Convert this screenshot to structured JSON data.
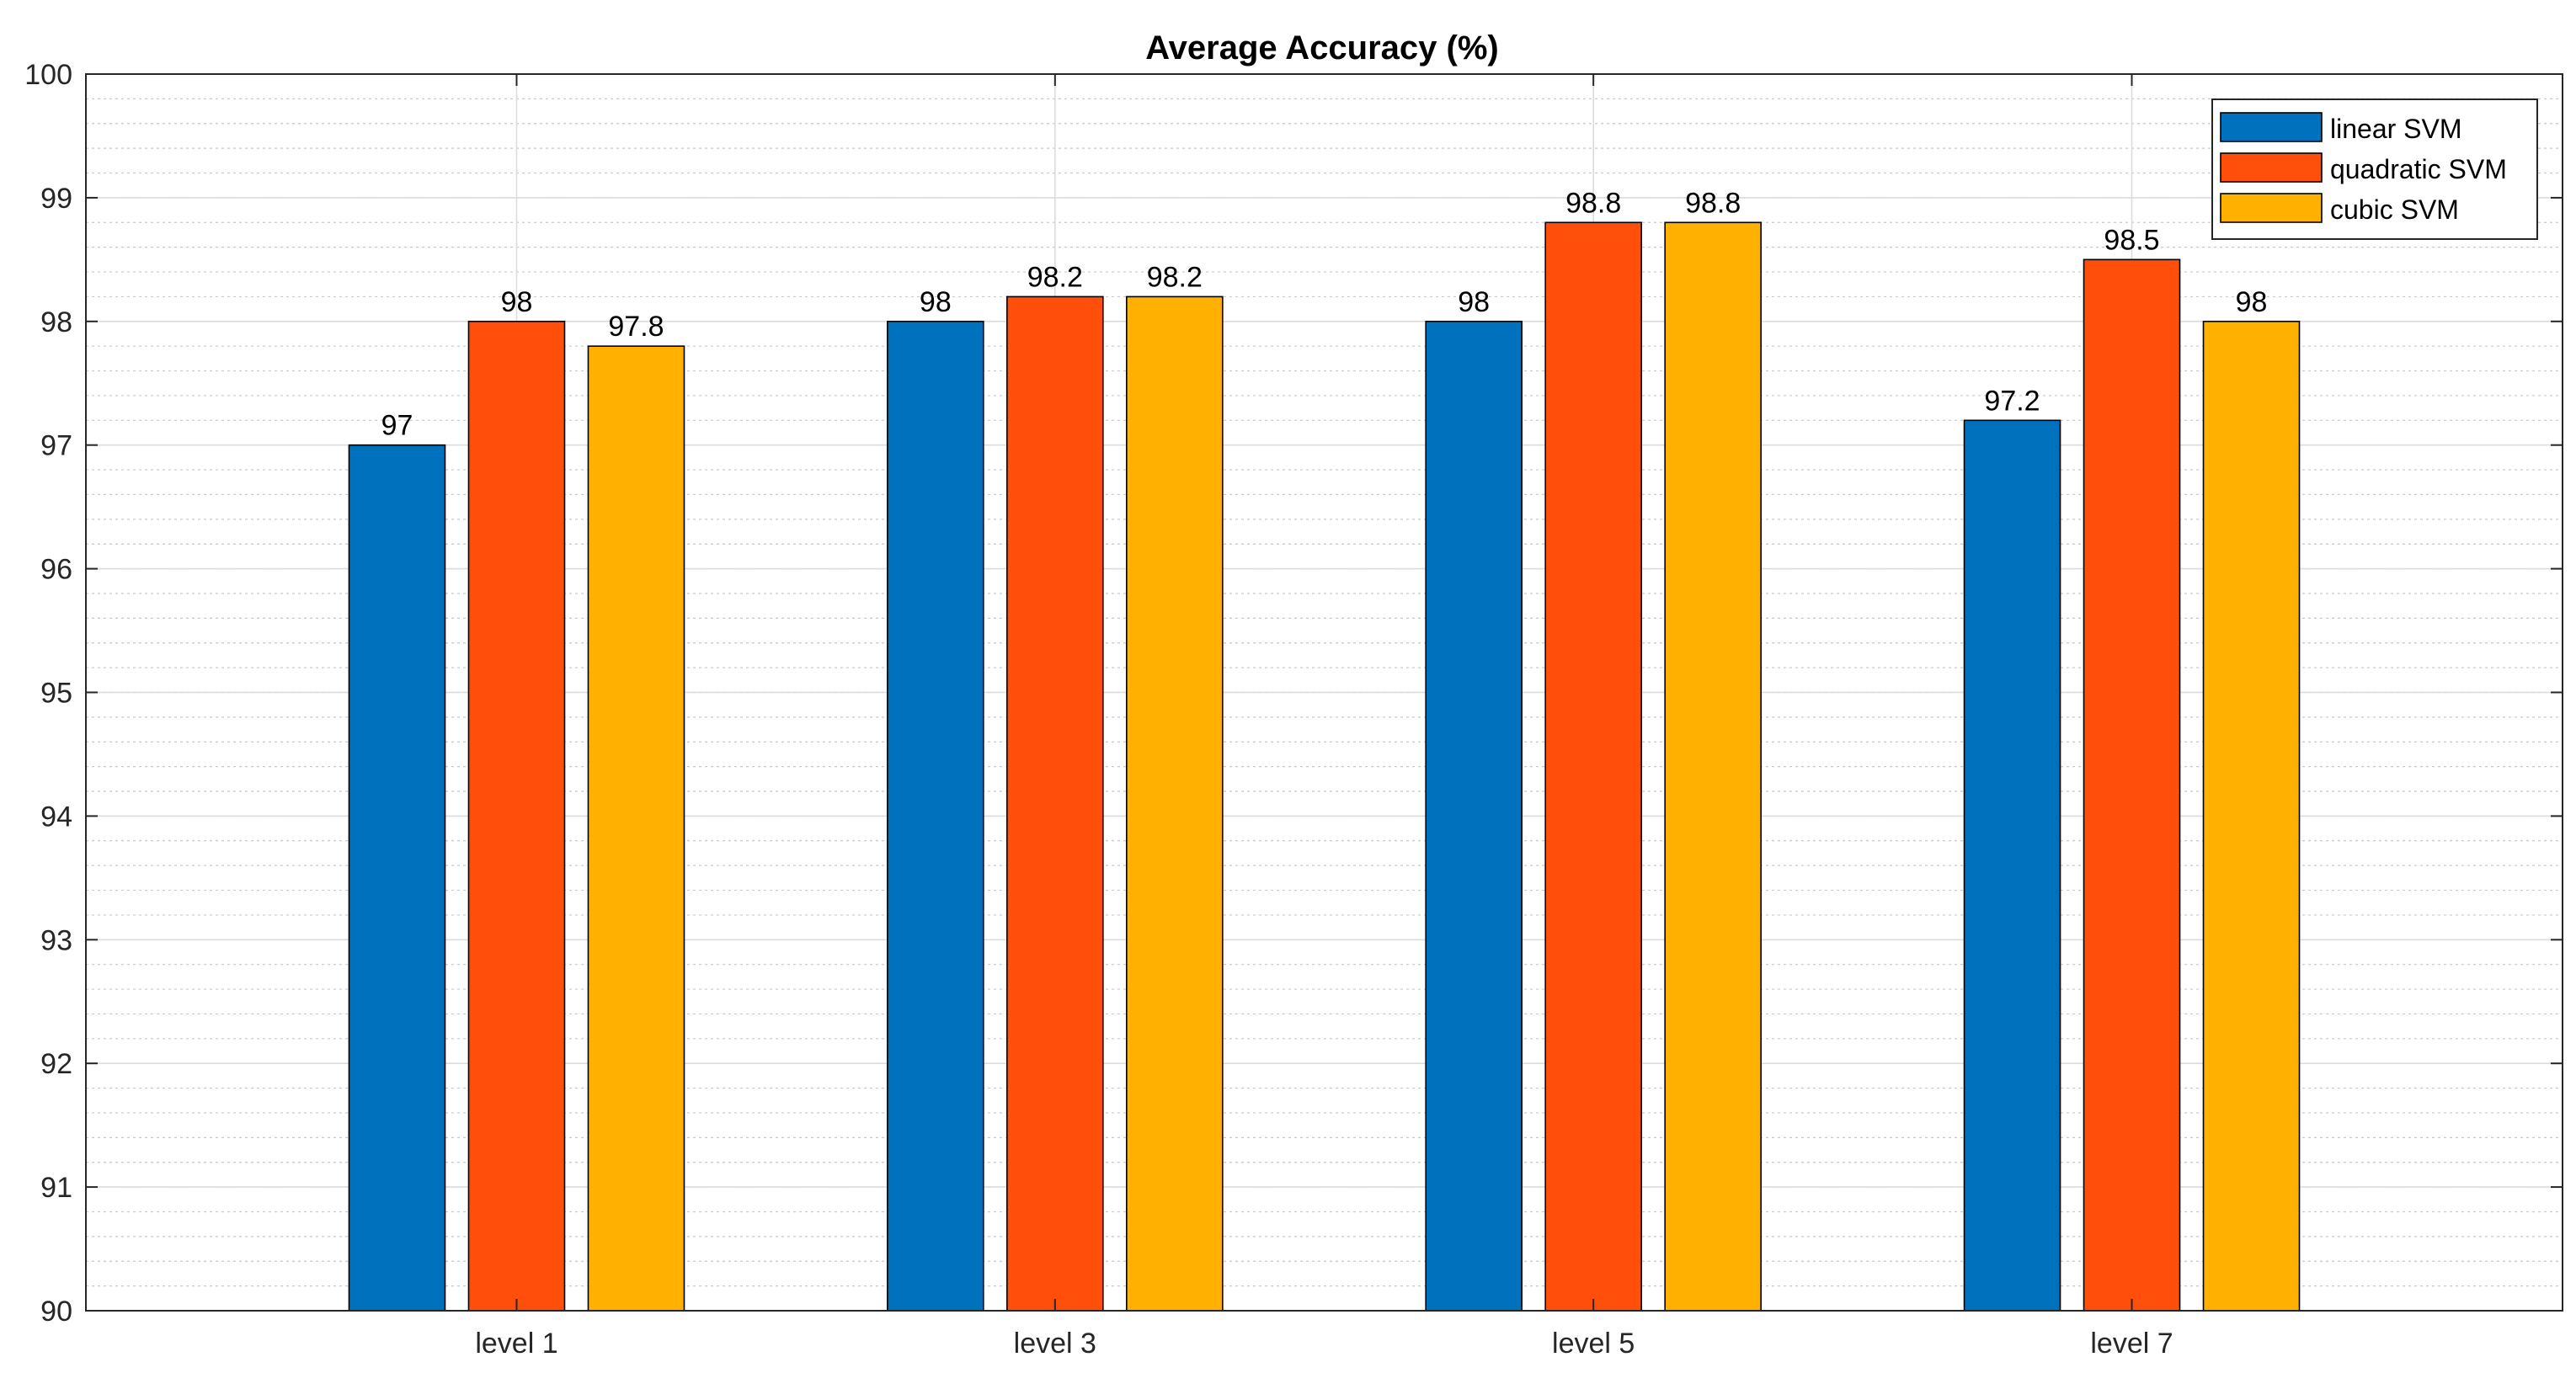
{
  "chart_data": {
    "type": "bar",
    "title": "Average Accuracy (%)",
    "xlabel": "",
    "ylabel": "",
    "categories": [
      "level 1",
      "level 3",
      "level 5",
      "level 7"
    ],
    "series": [
      {
        "name": "linear SVM",
        "color": "#0072BD",
        "values": [
          97,
          98,
          98,
          97.2
        ]
      },
      {
        "name": "quadratic SVM",
        "color": "#FF4F0A",
        "values": [
          98,
          98.2,
          98.8,
          98.5
        ]
      },
      {
        "name": "cubic SVM",
        "color": "#FFB000",
        "values": [
          97.8,
          98.2,
          98.8,
          98
        ]
      }
    ],
    "data_labels": [
      [
        "97",
        "98",
        "98",
        "97.2"
      ],
      [
        "98",
        "98.2",
        "98.8",
        "98.5"
      ],
      [
        "97.8",
        "98.2",
        "98.8",
        "98"
      ]
    ],
    "ylim": [
      90,
      100
    ],
    "yticks": [
      "90",
      "91",
      "92",
      "93",
      "94",
      "95",
      "96",
      "97",
      "98",
      "99",
      "100"
    ],
    "grid": true,
    "minor_grid": true,
    "legend_position": "top-right"
  }
}
